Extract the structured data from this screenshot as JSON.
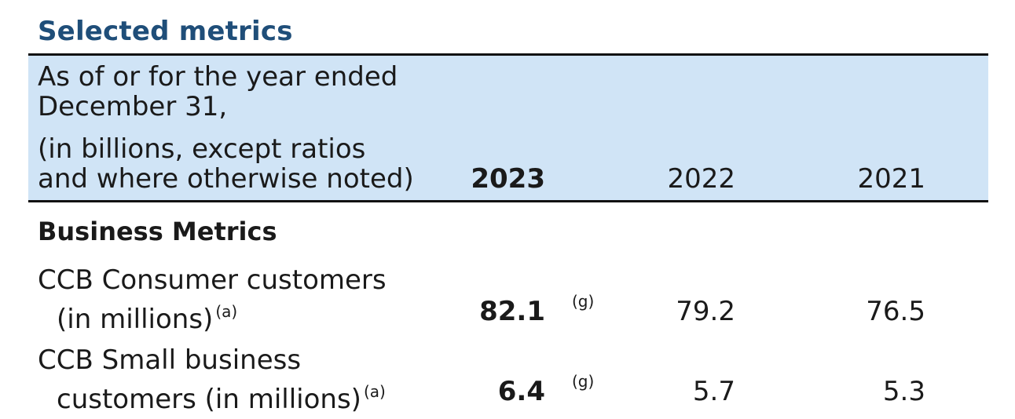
{
  "title": "Selected metrics",
  "header": {
    "line1": "As of or for the year ended",
    "line2": "December 31,",
    "line3": "(in billions, except ratios",
    "line4": "and where otherwise noted)",
    "years": [
      "2023",
      "2022",
      "2021"
    ]
  },
  "section": "Business Metrics",
  "rows": [
    {
      "label_line1": "CCB Consumer customers",
      "label_line2": "(in millions)",
      "label_note": "(a)",
      "v2023": "82.1",
      "v2023_note": "(g)",
      "v2022": "79.2",
      "v2021": "76.5"
    },
    {
      "label_line1": "CCB Small business",
      "label_line2": "customers (in millions)",
      "label_note": "(a)",
      "v2023": "6.4",
      "v2023_note": "(g)",
      "v2022": "5.7",
      "v2021": "5.3"
    }
  ]
}
